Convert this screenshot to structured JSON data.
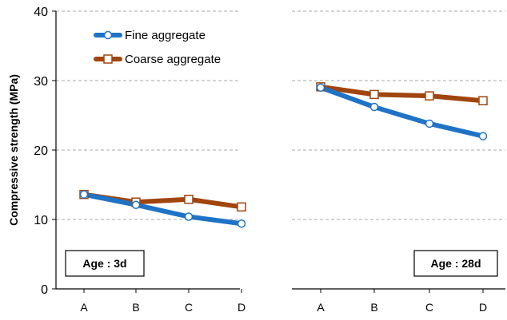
{
  "chart_data": [
    {
      "type": "line",
      "panel_label": "Age : 3d",
      "categories": [
        "A",
        "B",
        "C",
        "D"
      ],
      "ylabel": "Compressive strength (MPa)",
      "ylim": [
        0,
        40
      ],
      "yticks": [
        0,
        10,
        20,
        30,
        40
      ],
      "grid": "horizontal dashed",
      "legend": {
        "placement": "top-left",
        "entries": [
          "Fine aggregate",
          "Coarse aggregate"
        ]
      },
      "series": [
        {
          "name": "Fine aggregate",
          "values": [
            13.6,
            12.1,
            10.4,
            9.4
          ],
          "color": "#1f73c7",
          "marker": "circle"
        },
        {
          "name": "Coarse aggregate",
          "values": [
            13.6,
            12.5,
            12.9,
            11.8
          ],
          "color": "#a0450e",
          "marker": "square"
        }
      ]
    },
    {
      "type": "line",
      "panel_label": "Age : 28d",
      "categories": [
        "A",
        "B",
        "C",
        "D"
      ],
      "ylim": [
        0,
        40
      ],
      "grid": "horizontal dashed",
      "series": [
        {
          "name": "Fine aggregate",
          "values": [
            29.0,
            26.2,
            23.8,
            22.0
          ],
          "color": "#1f73c7",
          "marker": "circle"
        },
        {
          "name": "Coarse aggregate",
          "values": [
            29.1,
            28.0,
            27.8,
            27.1
          ],
          "color": "#a0450e",
          "marker": "square"
        }
      ]
    }
  ]
}
